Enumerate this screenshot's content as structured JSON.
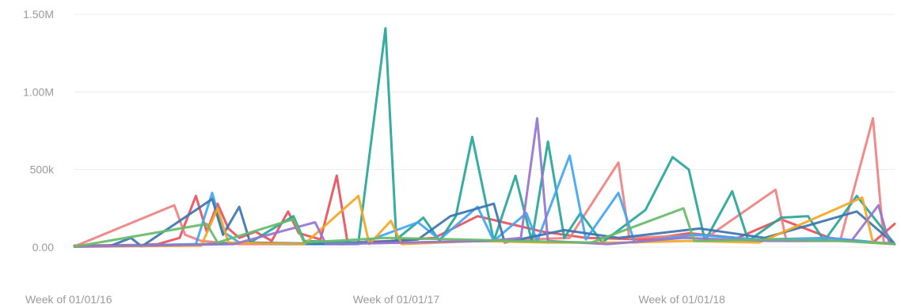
{
  "chart_data": {
    "type": "line",
    "title": "",
    "xlabel": "",
    "ylabel": "",
    "x_range": [
      "2016-01-01",
      "2018-11-26"
    ],
    "ylim": [
      0,
      1500000
    ],
    "y_ticks": [
      {
        "value": 0,
        "label": "0.00"
      },
      {
        "value": 500000,
        "label": "500k"
      },
      {
        "value": 1000000,
        "label": "1.00M"
      },
      {
        "value": 1500000,
        "label": "1.50M"
      }
    ],
    "x_ticks": [
      {
        "date": "2016-01-01",
        "label": "Week of 01/01/16"
      },
      {
        "date": "2017-01-01",
        "label": "Week of 01/01/17"
      },
      {
        "date": "2018-01-01",
        "label": "Week of 01/01/18"
      }
    ],
    "grid": true,
    "legend": "none",
    "series": [
      {
        "color": "#e8505b",
        "points": [
          [
            "2016-01-01",
            10000
          ],
          [
            "2016-03-28",
            15000
          ],
          [
            "2016-04-18",
            20000
          ],
          [
            "2016-05-16",
            60000
          ],
          [
            "2016-06-06",
            330000
          ],
          [
            "2016-06-20",
            100000
          ],
          [
            "2016-07-04",
            280000
          ],
          [
            "2016-07-18",
            120000
          ],
          [
            "2016-08-01",
            60000
          ],
          [
            "2016-08-22",
            100000
          ],
          [
            "2016-09-12",
            40000
          ],
          [
            "2016-10-03",
            230000
          ],
          [
            "2016-10-17",
            90000
          ],
          [
            "2016-11-14",
            50000
          ],
          [
            "2016-12-05",
            460000
          ],
          [
            "2016-12-19",
            30000
          ],
          [
            "2017-02-13",
            40000
          ],
          [
            "2017-04-10",
            60000
          ],
          [
            "2017-06-05",
            200000
          ],
          [
            "2017-08-28",
            100000
          ],
          [
            "2017-10-23",
            60000
          ],
          [
            "2018-01-08",
            50000
          ],
          [
            "2018-03-05",
            90000
          ],
          [
            "2018-05-07",
            60000
          ],
          [
            "2018-07-02",
            180000
          ],
          [
            "2018-09-03",
            60000
          ],
          [
            "2018-10-29",
            30000
          ],
          [
            "2018-11-26",
            150000
          ]
        ]
      },
      {
        "color": "#f08080",
        "points": [
          [
            "2016-01-01",
            5000
          ],
          [
            "2016-05-09",
            270000
          ],
          [
            "2016-05-23",
            80000
          ],
          [
            "2016-06-13",
            40000
          ],
          [
            "2016-08-01",
            20000
          ],
          [
            "2016-11-07",
            20000
          ],
          [
            "2017-03-06",
            30000
          ],
          [
            "2017-06-19",
            40000
          ],
          [
            "2017-10-02",
            60000
          ],
          [
            "2017-12-04",
            545000
          ],
          [
            "2017-12-18",
            60000
          ],
          [
            "2018-04-02",
            80000
          ],
          [
            "2018-06-25",
            370000
          ],
          [
            "2018-07-09",
            40000
          ],
          [
            "2018-09-17",
            50000
          ],
          [
            "2018-10-29",
            830000
          ],
          [
            "2018-11-12",
            30000
          ],
          [
            "2018-11-26",
            20000
          ]
        ]
      },
      {
        "color": "#26a69a",
        "points": [
          [
            "2016-01-01",
            5000
          ],
          [
            "2016-06-20",
            20000
          ],
          [
            "2016-08-15",
            30000
          ],
          [
            "2016-10-10",
            200000
          ],
          [
            "2016-10-24",
            40000
          ],
          [
            "2017-01-02",
            30000
          ],
          [
            "2017-02-06",
            1410000
          ],
          [
            "2017-02-20",
            50000
          ],
          [
            "2017-03-27",
            190000
          ],
          [
            "2017-04-17",
            40000
          ],
          [
            "2017-05-08",
            200000
          ],
          [
            "2017-05-29",
            710000
          ],
          [
            "2017-06-26",
            40000
          ],
          [
            "2017-07-24",
            460000
          ],
          [
            "2017-08-14",
            40000
          ],
          [
            "2017-09-04",
            680000
          ],
          [
            "2017-09-25",
            60000
          ],
          [
            "2017-10-16",
            220000
          ],
          [
            "2017-11-13",
            30000
          ],
          [
            "2018-01-08",
            240000
          ],
          [
            "2018-02-12",
            580000
          ],
          [
            "2018-03-05",
            500000
          ],
          [
            "2018-03-26",
            40000
          ],
          [
            "2018-04-30",
            360000
          ],
          [
            "2018-05-21",
            40000
          ],
          [
            "2018-07-02",
            190000
          ],
          [
            "2018-08-06",
            200000
          ],
          [
            "2018-08-27",
            40000
          ],
          [
            "2018-10-08",
            330000
          ],
          [
            "2018-11-26",
            20000
          ]
        ]
      },
      {
        "color": "#42a5f5",
        "points": [
          [
            "2016-01-01",
            3000
          ],
          [
            "2016-06-06",
            20000
          ],
          [
            "2016-06-27",
            350000
          ],
          [
            "2016-07-11",
            100000
          ],
          [
            "2016-08-01",
            30000
          ],
          [
            "2016-10-03",
            20000
          ],
          [
            "2017-01-02",
            20000
          ],
          [
            "2017-03-20",
            160000
          ],
          [
            "2017-04-17",
            50000
          ],
          [
            "2017-06-05",
            260000
          ],
          [
            "2017-06-26",
            40000
          ],
          [
            "2017-08-07",
            220000
          ],
          [
            "2017-08-21",
            40000
          ],
          [
            "2017-10-02",
            590000
          ],
          [
            "2017-10-23",
            50000
          ],
          [
            "2017-12-04",
            350000
          ],
          [
            "2017-12-25",
            30000
          ],
          [
            "2018-03-12",
            80000
          ],
          [
            "2018-06-04",
            50000
          ],
          [
            "2018-09-03",
            60000
          ],
          [
            "2018-11-26",
            20000
          ]
        ]
      },
      {
        "color": "#3a75b0",
        "points": [
          [
            "2016-01-01",
            5000
          ],
          [
            "2016-02-15",
            5000
          ],
          [
            "2016-03-14",
            60000
          ],
          [
            "2016-03-28",
            5000
          ],
          [
            "2016-06-27",
            310000
          ],
          [
            "2016-07-11",
            80000
          ],
          [
            "2016-08-01",
            260000
          ],
          [
            "2016-08-15",
            30000
          ],
          [
            "2016-12-12",
            20000
          ],
          [
            "2017-03-20",
            50000
          ],
          [
            "2017-05-01",
            200000
          ],
          [
            "2017-06-26",
            280000
          ],
          [
            "2017-07-10",
            30000
          ],
          [
            "2017-09-25",
            110000
          ],
          [
            "2017-12-04",
            60000
          ],
          [
            "2018-03-19",
            120000
          ],
          [
            "2018-06-11",
            60000
          ],
          [
            "2018-10-08",
            230000
          ],
          [
            "2018-11-26",
            20000
          ]
        ]
      },
      {
        "color": "#f5a623",
        "points": [
          [
            "2016-01-01",
            3000
          ],
          [
            "2016-06-13",
            10000
          ],
          [
            "2016-07-04",
            250000
          ],
          [
            "2016-07-18",
            30000
          ],
          [
            "2016-10-24",
            20000
          ],
          [
            "2017-01-02",
            330000
          ],
          [
            "2017-01-16",
            20000
          ],
          [
            "2017-02-13",
            170000
          ],
          [
            "2017-02-27",
            20000
          ],
          [
            "2017-06-05",
            40000
          ],
          [
            "2017-09-04",
            30000
          ],
          [
            "2017-12-11",
            30000
          ],
          [
            "2018-03-05",
            40000
          ],
          [
            "2018-06-04",
            30000
          ],
          [
            "2018-10-15",
            320000
          ],
          [
            "2018-10-29",
            30000
          ],
          [
            "2018-11-26",
            20000
          ]
        ]
      },
      {
        "color": "#9575cd",
        "points": [
          [
            "2016-01-01",
            3000
          ],
          [
            "2016-07-25",
            20000
          ],
          [
            "2016-11-07",
            160000
          ],
          [
            "2016-11-21",
            20000
          ],
          [
            "2017-03-06",
            30000
          ],
          [
            "2017-06-19",
            40000
          ],
          [
            "2017-07-31",
            60000
          ],
          [
            "2017-08-21",
            830000
          ],
          [
            "2017-09-04",
            40000
          ],
          [
            "2017-11-20",
            20000
          ],
          [
            "2018-02-26",
            60000
          ],
          [
            "2018-06-18",
            40000
          ],
          [
            "2018-10-01",
            40000
          ],
          [
            "2018-11-05",
            270000
          ],
          [
            "2018-11-19",
            30000
          ],
          [
            "2018-11-26",
            20000
          ]
        ]
      },
      {
        "color": "#66bb6a",
        "points": [
          [
            "2016-01-01",
            3000
          ],
          [
            "2016-06-20",
            150000
          ],
          [
            "2016-07-04",
            30000
          ],
          [
            "2016-10-10",
            180000
          ],
          [
            "2016-10-24",
            30000
          ],
          [
            "2017-02-06",
            60000
          ],
          [
            "2017-05-15",
            50000
          ],
          [
            "2017-07-24",
            40000
          ],
          [
            "2017-10-30",
            30000
          ],
          [
            "2018-02-26",
            250000
          ],
          [
            "2018-03-12",
            40000
          ],
          [
            "2018-06-25",
            50000
          ],
          [
            "2018-09-17",
            40000
          ],
          [
            "2018-11-26",
            20000
          ]
        ]
      }
    ]
  }
}
